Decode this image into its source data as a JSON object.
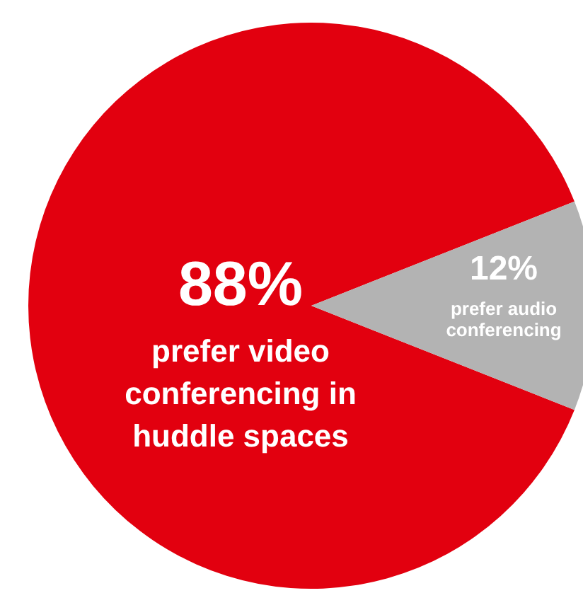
{
  "chart_data": {
    "type": "pie",
    "categories": [
      "prefer video conferencing in huddle spaces",
      "prefer audio conferencing"
    ],
    "values": [
      88,
      12
    ],
    "colors": [
      "#e2000f",
      "#b3b3b3"
    ],
    "value_labels": [
      "88%",
      "12%"
    ]
  }
}
